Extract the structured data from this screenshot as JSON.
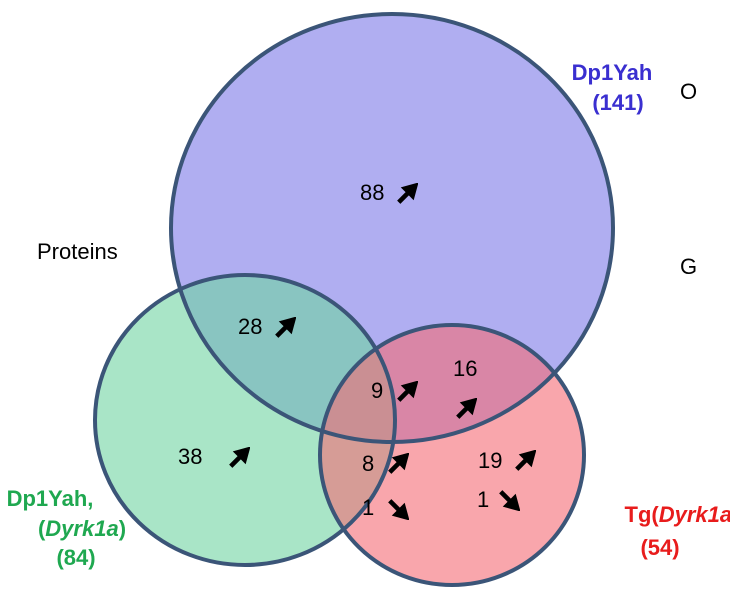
{
  "diagram": {
    "side_labels": {
      "proteins": "Proteins",
      "cut_top": "O",
      "cut_middle": "G"
    },
    "sets": {
      "dp1yah": {
        "name": "Dp1Yah",
        "count": "(141)"
      },
      "double": {
        "line1": "Dp1Yah,",
        "line2_open": "(",
        "line2_italic": "Dyrk1a",
        "line2_close": ")",
        "count": "(84)"
      },
      "tg": {
        "prefix": "Tg(",
        "italic": "Dyrk1a",
        "suffix": ")",
        "count": "(54)"
      }
    },
    "regions": {
      "dp1yah_only": "88",
      "dp1yah_double": "28",
      "all_three": "9",
      "dp1yah_tg": "16",
      "double_only": "38",
      "double_tg_up": "8",
      "double_tg_down": "1",
      "tg_only_up": "19",
      "tg_only_down": "1"
    }
  }
}
